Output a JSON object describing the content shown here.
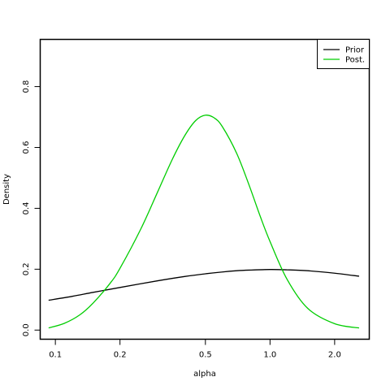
{
  "chart_data": {
    "type": "line",
    "title": "",
    "xlabel": "alpha",
    "ylabel": "Density",
    "x_scale": "log",
    "xlim": [
      0.085,
      2.9
    ],
    "ylim": [
      -0.03,
      0.955
    ],
    "x_ticks": [
      {
        "value": 0.1,
        "label": "0.1"
      },
      {
        "value": 0.2,
        "label": "0.2"
      },
      {
        "value": 0.5,
        "label": "0.5"
      },
      {
        "value": 1.0,
        "label": "1.0"
      },
      {
        "value": 2.0,
        "label": "2.0"
      }
    ],
    "y_ticks": [
      {
        "value": 0.0,
        "label": "0.0"
      },
      {
        "value": 0.2,
        "label": "0.2"
      },
      {
        "value": 0.4,
        "label": "0.4"
      },
      {
        "value": 0.6,
        "label": "0.6"
      },
      {
        "value": 0.8,
        "label": "0.8"
      }
    ],
    "grid": false,
    "legend_position": "top-right",
    "series": [
      {
        "name": "Prior",
        "color": "#000000",
        "x": [
          0.093,
          0.12,
          0.15,
          0.2,
          0.3,
          0.4,
          0.5,
          0.6,
          0.7,
          0.8,
          1.0,
          1.2,
          1.5,
          2.0,
          2.6
        ],
        "y": [
          0.098,
          0.111,
          0.124,
          0.14,
          0.162,
          0.176,
          0.185,
          0.191,
          0.195,
          0.197,
          0.199,
          0.198,
          0.195,
          0.187,
          0.177
        ]
      },
      {
        "name": "Post.",
        "color": "#00cd00",
        "x": [
          0.093,
          0.11,
          0.13,
          0.15,
          0.18,
          0.2,
          0.25,
          0.3,
          0.35,
          0.4,
          0.45,
          0.5,
          0.55,
          0.6,
          0.7,
          0.8,
          0.9,
          1.0,
          1.2,
          1.5,
          2.0,
          2.6
        ],
        "y": [
          0.007,
          0.022,
          0.05,
          0.089,
          0.154,
          0.203,
          0.332,
          0.455,
          0.56,
          0.638,
          0.688,
          0.706,
          0.697,
          0.668,
          0.58,
          0.475,
          0.374,
          0.291,
          0.167,
          0.071,
          0.021,
          0.007
        ]
      }
    ]
  }
}
